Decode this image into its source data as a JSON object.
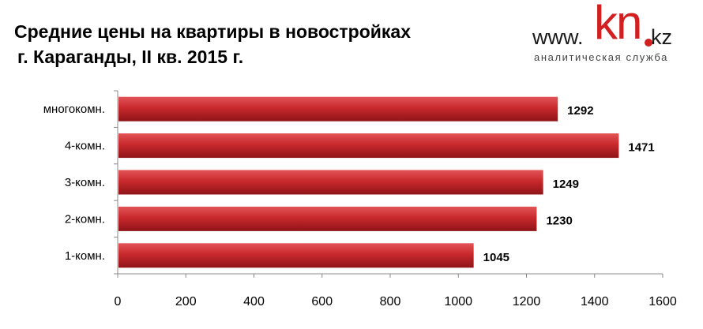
{
  "title_lines": [
    "Средние цены на квартиры в новостройках",
    "г. Караганды, II кв. 2015 г."
  ],
  "logo": {
    "www": "www.",
    "kn": "kn",
    "kz": "kz",
    "subtitle": "аналитическая служба"
  },
  "colors": {
    "bar": "#c9292d",
    "bar_dark": "#8e1418",
    "bar_light": "#e25457"
  },
  "chart_data": {
    "type": "bar",
    "orientation": "horizontal",
    "title": "Средние цены на квартиры в новостройках г. Караганды, II кв. 2015 г.",
    "categories": [
      "многокомн.",
      "4-комн.",
      "3-комн.",
      "2-комн.",
      "1-комн."
    ],
    "values": [
      1292,
      1471,
      1249,
      1230,
      1045
    ],
    "data_labels": [
      "1292",
      "1471",
      "1249",
      "1230",
      "1045"
    ],
    "xlim": [
      0,
      1600
    ],
    "xticks": [
      0,
      200,
      400,
      600,
      800,
      1000,
      1200,
      1400,
      1600
    ],
    "xlabel": "",
    "ylabel": "",
    "grid": false,
    "legend": "none"
  }
}
